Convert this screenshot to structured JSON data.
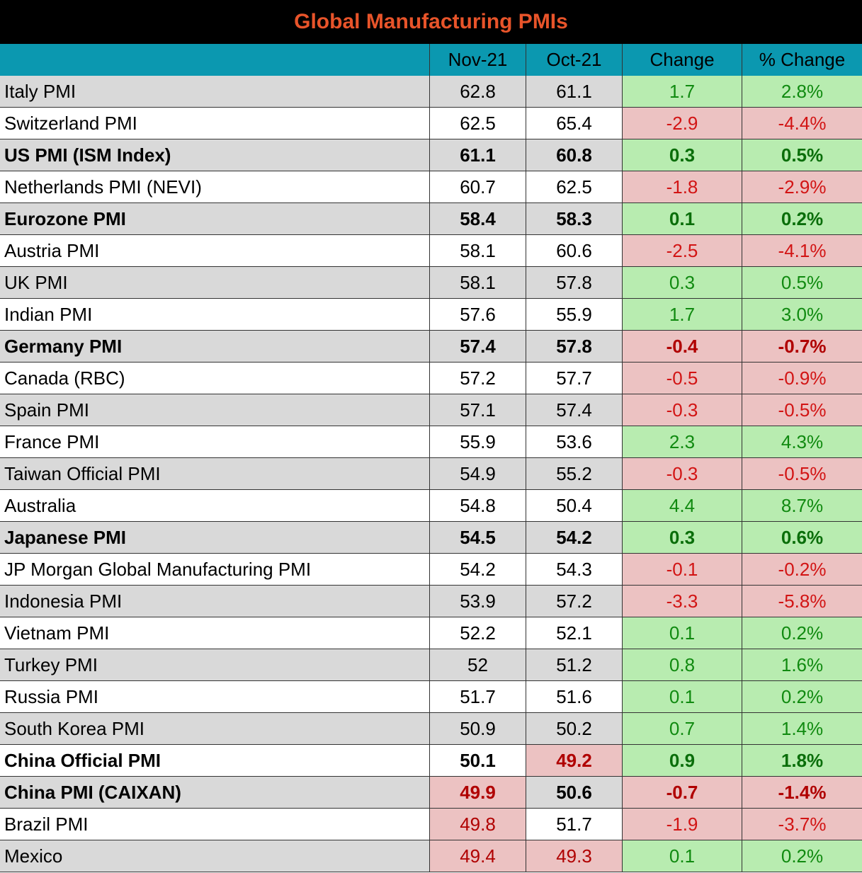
{
  "title": "Global Manufacturing PMIs",
  "colors": {
    "title_bg": "#000000",
    "title_text": "#e8542a",
    "header_bg": "#0b98b0",
    "row_alt_bg": "#d9d9d9",
    "row_bg": "#ffffff",
    "positive_bg": "#b8ecb0",
    "positive_text": "#108a10",
    "positive_text_bold": "#0a6e0a",
    "negative_bg": "#ecc2c2",
    "negative_text": "#d21414",
    "negative_text_bold": "#b00000",
    "below50_bg": "#ecc2c2",
    "below50_text": "#b00000"
  },
  "chart_data": {
    "type": "table",
    "title": "Global Manufacturing PMIs",
    "columns": [
      "",
      "Nov-21",
      "Oct-21",
      "Change",
      "% Change"
    ],
    "rows": [
      {
        "name": "Italy PMI",
        "nov": "62.8",
        "oct": "61.1",
        "change": "1.7",
        "pct": "2.8%",
        "bold": false
      },
      {
        "name": "Switzerland PMI",
        "nov": "62.5",
        "oct": "65.4",
        "change": "-2.9",
        "pct": "-4.4%",
        "bold": false
      },
      {
        "name": "US PMI (ISM Index)",
        "nov": "61.1",
        "oct": "60.8",
        "change": "0.3",
        "pct": "0.5%",
        "bold": true
      },
      {
        "name": "Netherlands PMI (NEVI)",
        "nov": "60.7",
        "oct": "62.5",
        "change": "-1.8",
        "pct": "-2.9%",
        "bold": false
      },
      {
        "name": "Eurozone PMI",
        "nov": "58.4",
        "oct": "58.3",
        "change": "0.1",
        "pct": "0.2%",
        "bold": true
      },
      {
        "name": "Austria PMI",
        "nov": "58.1",
        "oct": "60.6",
        "change": "-2.5",
        "pct": "-4.1%",
        "bold": false
      },
      {
        "name": "UK PMI",
        "nov": "58.1",
        "oct": "57.8",
        "change": "0.3",
        "pct": "0.5%",
        "bold": false
      },
      {
        "name": "Indian PMI",
        "nov": "57.6",
        "oct": "55.9",
        "change": "1.7",
        "pct": "3.0%",
        "bold": false
      },
      {
        "name": "Germany PMI",
        "nov": "57.4",
        "oct": "57.8",
        "change": "-0.4",
        "pct": "-0.7%",
        "bold": true
      },
      {
        "name": "Canada (RBC)",
        "nov": "57.2",
        "oct": "57.7",
        "change": "-0.5",
        "pct": "-0.9%",
        "bold": false
      },
      {
        "name": "Spain PMI",
        "nov": "57.1",
        "oct": "57.4",
        "change": "-0.3",
        "pct": "-0.5%",
        "bold": false
      },
      {
        "name": "France PMI",
        "nov": "55.9",
        "oct": "53.6",
        "change": "2.3",
        "pct": "4.3%",
        "bold": false
      },
      {
        "name": "Taiwan Official PMI",
        "nov": "54.9",
        "oct": "55.2",
        "change": "-0.3",
        "pct": "-0.5%",
        "bold": false
      },
      {
        "name": "Australia",
        "nov": "54.8",
        "oct": "50.4",
        "change": "4.4",
        "pct": "8.7%",
        "bold": false
      },
      {
        "name": "Japanese PMI",
        "nov": "54.5",
        "oct": "54.2",
        "change": "0.3",
        "pct": "0.6%",
        "bold": true
      },
      {
        "name": "JP Morgan Global Manufacturing PMI",
        "nov": "54.2",
        "oct": "54.3",
        "change": "-0.1",
        "pct": "-0.2%",
        "bold": false
      },
      {
        "name": "Indonesia PMI",
        "nov": "53.9",
        "oct": "57.2",
        "change": "-3.3",
        "pct": "-5.8%",
        "bold": false
      },
      {
        "name": "Vietnam PMI",
        "nov": "52.2",
        "oct": "52.1",
        "change": "0.1",
        "pct": "0.2%",
        "bold": false
      },
      {
        "name": "Turkey PMI",
        "nov": "52",
        "oct": "51.2",
        "change": "0.8",
        "pct": "1.6%",
        "bold": false
      },
      {
        "name": "Russia PMI",
        "nov": "51.7",
        "oct": "51.6",
        "change": "0.1",
        "pct": "0.2%",
        "bold": false
      },
      {
        "name": "South Korea PMI",
        "nov": "50.9",
        "oct": "50.2",
        "change": "0.7",
        "pct": "1.4%",
        "bold": false
      },
      {
        "name": "China Official PMI",
        "nov": "50.1",
        "oct": "49.2",
        "change": "0.9",
        "pct": "1.8%",
        "bold": true
      },
      {
        "name": "China PMI (CAIXAN)",
        "nov": "49.9",
        "oct": "50.6",
        "change": "-0.7",
        "pct": "-1.4%",
        "bold": true
      },
      {
        "name": "Brazil PMI",
        "nov": "49.8",
        "oct": "51.7",
        "change": "-1.9",
        "pct": "-3.7%",
        "bold": false
      },
      {
        "name": "Mexico",
        "nov": "49.4",
        "oct": "49.3",
        "change": "0.1",
        "pct": "0.2%",
        "bold": false
      }
    ]
  }
}
